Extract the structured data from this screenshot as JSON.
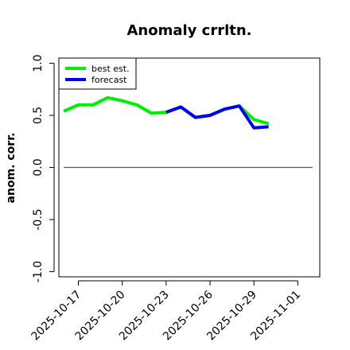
{
  "chart_data": {
    "type": "line",
    "title": "Anomaly crrltn.",
    "xlabel": "",
    "ylabel": "anom. corr.",
    "ylim": [
      -1.05,
      1.05
    ],
    "xlim": [
      "2025-10-15T16:00",
      "2025-11-02T12:00"
    ],
    "y_ticks": [
      -1.0,
      -0.5,
      0.0,
      0.5,
      1.0
    ],
    "y_tick_labels": [
      "-1.0",
      "-0.5",
      "0.0",
      "0.5",
      "1.0"
    ],
    "x_ticks": [
      "2025-10-17",
      "2025-10-20",
      "2025-10-23",
      "2025-10-26",
      "2025-10-29",
      "2025-11-01"
    ],
    "x_tick_labels": [
      "2025-10-17",
      "2025-10-20",
      "2025-10-23",
      "2025-10-26",
      "2025-10-29",
      "2025-11-01"
    ],
    "x_tick_label_colors": [
      "#000000",
      "#000000",
      "#228b22",
      "#000000",
      "#000000",
      "#000000"
    ],
    "reference_line": {
      "y": 0.0,
      "color": "#555555",
      "x_start": "2025-10-16",
      "x_end": "2025-11-02"
    },
    "legend": {
      "position": "top-left"
    },
    "grid": false,
    "series": [
      {
        "name": "best est.",
        "color": "#00ee00",
        "x": [
          "2025-10-16",
          "2025-10-17",
          "2025-10-18",
          "2025-10-19",
          "2025-10-20",
          "2025-10-21",
          "2025-10-22",
          "2025-10-23",
          "2025-10-24",
          "2025-10-25",
          "2025-10-26",
          "2025-10-27",
          "2025-10-28",
          "2025-10-29",
          "2025-10-30"
        ],
        "values": [
          0.54,
          0.6,
          0.6,
          0.67,
          0.64,
          0.6,
          0.52,
          0.53,
          0.58,
          0.48,
          0.5,
          0.56,
          0.59,
          0.46,
          0.42
        ]
      },
      {
        "name": "forecast",
        "color": "#0000ee",
        "x": [
          "2025-10-23",
          "2025-10-24",
          "2025-10-25",
          "2025-10-26",
          "2025-10-27",
          "2025-10-28",
          "2025-10-29",
          "2025-10-30"
        ],
        "values": [
          0.53,
          0.58,
          0.48,
          0.5,
          0.56,
          0.59,
          0.38,
          0.39
        ]
      }
    ]
  }
}
